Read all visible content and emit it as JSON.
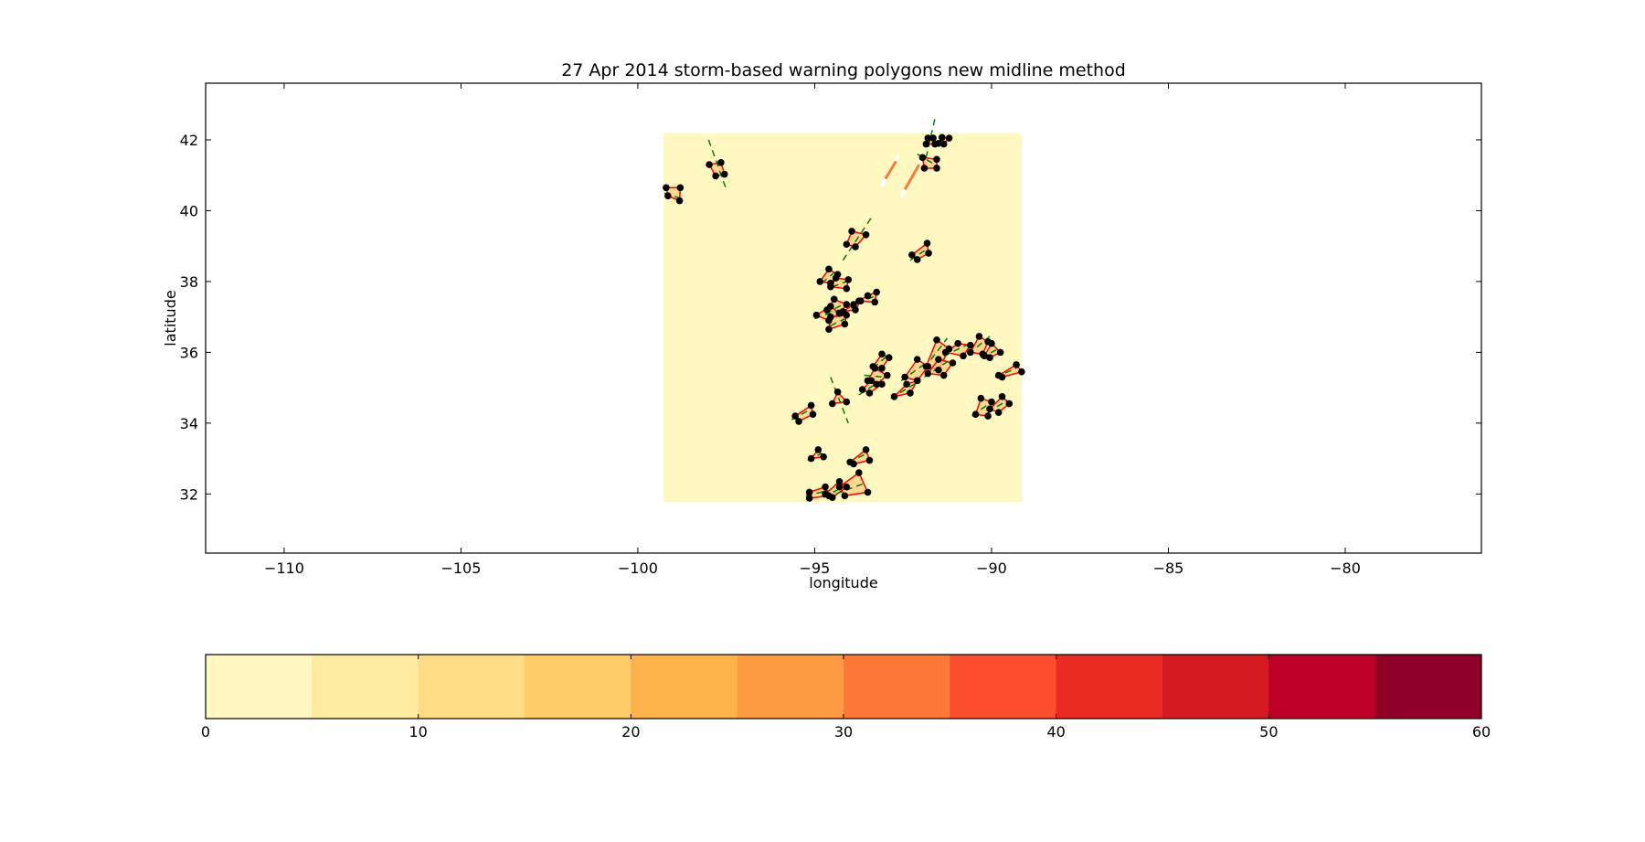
{
  "chart_data": {
    "type": "scatter",
    "title": "27 Apr 2014 storm-based warning polygons new midline method",
    "xlabel": "longitude",
    "ylabel": "latitude",
    "xlim": [
      -112.22,
      -76.15
    ],
    "ylim": [
      30.33,
      43.6
    ],
    "xticks": [
      -110,
      -105,
      -100,
      -95,
      -90,
      -85,
      -80
    ],
    "xtick_labels": [
      "−110",
      "−105",
      "−100",
      "−95",
      "−90",
      "−85",
      "−80"
    ],
    "yticks": [
      32,
      34,
      36,
      38,
      40,
      42
    ],
    "ytick_labels": [
      "32",
      "34",
      "36",
      "38",
      "40",
      "42"
    ],
    "grid": false,
    "background_field": {
      "lon": [
        -99.27,
        -89.14
      ],
      "lat": [
        31.77,
        42.18
      ],
      "value": 0
    },
    "colorbar": {
      "orientation": "horizontal",
      "placement": "bottom",
      "range": [
        0,
        60
      ],
      "ticks": [
        0,
        10,
        20,
        30,
        40,
        50,
        60
      ],
      "tick_labels": [
        "0",
        "10",
        "20",
        "30",
        "40",
        "50",
        "60"
      ],
      "colors": [
        "#fff8c0",
        "#feeba0",
        "#fedd84",
        "#fecc68",
        "#feb24c",
        "#fd9b42",
        "#fd7a36",
        "#fc4d2c",
        "#e92b23",
        "#d51b21",
        "#bc0026",
        "#900026"
      ]
    },
    "polygon_color": "#ff0000",
    "polygon_fill": "#fdcc82",
    "midline_color": "#008000",
    "vertex_color": "#000000",
    "storms": [
      {
        "v": [
          [
            -99.2,
            40.65
          ],
          [
            -98.8,
            40.65
          ],
          [
            -98.82,
            40.28
          ],
          [
            -99.15,
            40.42
          ]
        ],
        "mid": [
          [
            -99.25,
            40.5
          ],
          [
            -98.8,
            40.35
          ]
        ]
      },
      {
        "v": [
          [
            -97.98,
            41.3
          ],
          [
            -97.65,
            41.36
          ],
          [
            -97.55,
            41.03
          ],
          [
            -97.8,
            40.98
          ]
        ],
        "mid": [
          [
            -98.0,
            42.0
          ],
          [
            -97.5,
            40.6
          ]
        ]
      },
      {
        "v": [
          [
            -94.1,
            39.05
          ],
          [
            -93.95,
            39.42
          ],
          [
            -93.55,
            39.32
          ],
          [
            -93.85,
            38.98
          ]
        ],
        "mid": [
          [
            -94.2,
            38.6
          ],
          [
            -93.4,
            39.8
          ]
        ]
      },
      {
        "v": [
          [
            -92.25,
            38.75
          ],
          [
            -91.82,
            39.08
          ],
          [
            -91.78,
            38.8
          ],
          [
            -92.1,
            38.62
          ]
        ],
        "mid": [
          [
            -92.3,
            38.6
          ],
          [
            -91.85,
            38.9
          ]
        ]
      },
      {
        "v": [
          [
            -91.95,
            41.5
          ],
          [
            -91.55,
            41.45
          ],
          [
            -91.55,
            41.2
          ],
          [
            -91.9,
            41.2
          ]
        ],
        "mid": [
          [
            -92.1,
            41.6
          ],
          [
            -91.6,
            41.3
          ]
        ]
      },
      {
        "v": [
          [
            -94.85,
            38.0
          ],
          [
            -94.6,
            38.35
          ],
          [
            -94.35,
            38.2
          ],
          [
            -94.55,
            37.95
          ]
        ],
        "mid": [
          [
            -94.8,
            37.95
          ],
          [
            -94.45,
            38.25
          ]
        ]
      },
      {
        "v": [
          [
            -94.55,
            37.85
          ],
          [
            -94.4,
            38.1
          ],
          [
            -94.05,
            38.05
          ],
          [
            -94.1,
            37.8
          ]
        ],
        "mid": [
          [
            -94.5,
            37.85
          ],
          [
            -94.1,
            38.0
          ]
        ]
      },
      {
        "v": [
          [
            -93.75,
            37.45
          ],
          [
            -93.5,
            37.6
          ],
          [
            -93.25,
            37.7
          ],
          [
            -93.3,
            37.42
          ]
        ],
        "mid": [
          [
            -93.8,
            37.4
          ],
          [
            -93.25,
            37.6
          ]
        ]
      },
      {
        "v": [
          [
            -94.65,
            37.2
          ],
          [
            -94.45,
            37.5
          ],
          [
            -94.1,
            37.35
          ],
          [
            -94.3,
            37.1
          ]
        ],
        "mid": [
          [
            -94.7,
            37.1
          ],
          [
            -94.1,
            37.4
          ]
        ]
      },
      {
        "v": [
          [
            -94.95,
            37.05
          ],
          [
            -94.55,
            37.3
          ],
          [
            -94.3,
            37.1
          ],
          [
            -94.6,
            36.9
          ]
        ],
        "mid": [
          [
            -95.0,
            36.95
          ],
          [
            -94.3,
            37.2
          ]
        ]
      },
      {
        "v": [
          [
            -94.6,
            36.65
          ],
          [
            -94.55,
            37.0
          ],
          [
            -94.1,
            37.05
          ],
          [
            -94.15,
            36.8
          ]
        ],
        "mid": [
          [
            -94.55,
            36.75
          ],
          [
            -94.15,
            36.95
          ]
        ]
      },
      {
        "v": [
          [
            -94.2,
            37.15
          ],
          [
            -93.9,
            37.35
          ],
          [
            -93.7,
            37.45
          ],
          [
            -93.85,
            37.2
          ]
        ],
        "mid": [
          [
            -94.25,
            37.1
          ],
          [
            -93.7,
            37.4
          ]
        ]
      },
      {
        "v": [
          [
            -93.35,
            35.6
          ],
          [
            -93.1,
            35.95
          ],
          [
            -92.9,
            35.85
          ],
          [
            -93.1,
            35.55
          ]
        ],
        "mid": [
          [
            -93.35,
            35.55
          ],
          [
            -92.95,
            35.9
          ]
        ]
      },
      {
        "v": [
          [
            -93.5,
            35.2
          ],
          [
            -93.3,
            35.55
          ],
          [
            -92.95,
            35.35
          ],
          [
            -93.25,
            35.1
          ]
        ],
        "mid": [
          [
            -93.6,
            35.35
          ],
          [
            -93.0,
            35.3
          ]
        ]
      },
      {
        "v": [
          [
            -93.65,
            34.95
          ],
          [
            -93.4,
            35.2
          ],
          [
            -93.1,
            35.1
          ],
          [
            -93.45,
            34.85
          ]
        ],
        "mid": [
          [
            -93.75,
            34.8
          ],
          [
            -93.2,
            35.15
          ]
        ]
      },
      {
        "v": [
          [
            -92.75,
            34.75
          ],
          [
            -92.4,
            35.1
          ],
          [
            -92.1,
            35.2
          ],
          [
            -92.3,
            34.85
          ]
        ],
        "mid": [
          [
            -92.85,
            34.7
          ],
          [
            -92.1,
            35.15
          ]
        ]
      },
      {
        "v": [
          [
            -92.45,
            35.3
          ],
          [
            -92.1,
            35.8
          ],
          [
            -91.8,
            35.6
          ],
          [
            -92.1,
            35.2
          ]
        ],
        "mid": [
          [
            -92.55,
            35.2
          ],
          [
            -91.85,
            35.7
          ]
        ]
      },
      {
        "v": [
          [
            -91.85,
            35.6
          ],
          [
            -91.55,
            36.35
          ],
          [
            -91.2,
            36.1
          ],
          [
            -91.5,
            35.5
          ]
        ],
        "mid": [
          [
            -91.9,
            35.55
          ],
          [
            -91.25,
            36.4
          ]
        ]
      },
      {
        "v": [
          [
            -91.3,
            36.0
          ],
          [
            -90.95,
            36.25
          ],
          [
            -90.6,
            36.2
          ],
          [
            -90.8,
            35.9
          ]
        ],
        "mid": [
          [
            -91.35,
            35.9
          ],
          [
            -90.6,
            36.25
          ]
        ]
      },
      {
        "v": [
          [
            -91.8,
            35.4
          ],
          [
            -91.5,
            35.8
          ],
          [
            -91.1,
            35.7
          ],
          [
            -91.35,
            35.35
          ]
        ],
        "mid": [
          [
            -91.9,
            35.3
          ],
          [
            -91.15,
            35.8
          ]
        ]
      },
      {
        "v": [
          [
            -90.6,
            36.0
          ],
          [
            -90.35,
            36.45
          ],
          [
            -90.1,
            36.3
          ],
          [
            -90.25,
            35.95
          ]
        ],
        "mid": [
          [
            -90.65,
            35.95
          ],
          [
            -90.05,
            36.45
          ]
        ]
      },
      {
        "v": [
          [
            -90.2,
            35.9
          ],
          [
            -90.0,
            36.25
          ],
          [
            -89.75,
            36.0
          ],
          [
            -90.05,
            35.85
          ]
        ],
        "mid": [
          [
            -90.3,
            35.85
          ],
          [
            -89.8,
            36.1
          ]
        ]
      },
      {
        "v": [
          [
            -89.8,
            35.35
          ],
          [
            -89.3,
            35.65
          ],
          [
            -89.15,
            35.45
          ],
          [
            -89.7,
            35.3
          ]
        ],
        "mid": [
          [
            -89.9,
            35.3
          ],
          [
            -89.3,
            35.55
          ]
        ]
      },
      {
        "v": [
          [
            -90.45,
            34.25
          ],
          [
            -90.3,
            34.7
          ],
          [
            -90.0,
            34.6
          ],
          [
            -90.1,
            34.2
          ]
        ],
        "mid": [
          [
            -90.55,
            34.2
          ],
          [
            -90.0,
            34.6
          ]
        ]
      },
      {
        "v": [
          [
            -90.05,
            34.4
          ],
          [
            -89.7,
            34.75
          ],
          [
            -89.5,
            34.55
          ],
          [
            -89.8,
            34.3
          ]
        ],
        "mid": [
          [
            -90.1,
            34.3
          ],
          [
            -89.55,
            34.65
          ]
        ]
      },
      {
        "v": [
          [
            -95.55,
            34.2
          ],
          [
            -95.1,
            34.5
          ],
          [
            -95.05,
            34.25
          ],
          [
            -95.45,
            34.05
          ]
        ],
        "mid": [
          [
            -95.65,
            34.1
          ],
          [
            -95.1,
            34.4
          ]
        ]
      },
      {
        "v": [
          [
            -94.5,
            34.55
          ],
          [
            -94.35,
            34.88
          ],
          [
            -94.1,
            34.6
          ]
        ],
        "mid": [
          [
            -94.55,
            35.3
          ],
          [
            -94.05,
            34.0
          ]
        ]
      },
      {
        "v": [
          [
            -95.1,
            33.0
          ],
          [
            -94.9,
            33.25
          ],
          [
            -94.75,
            33.05
          ]
        ],
        "mid": [
          [
            -95.2,
            32.95
          ],
          [
            -94.8,
            33.15
          ]
        ]
      },
      {
        "v": [
          [
            -94.0,
            32.9
          ],
          [
            -93.55,
            33.25
          ],
          [
            -93.45,
            32.95
          ],
          [
            -93.9,
            32.85
          ]
        ],
        "mid": [
          [
            -94.05,
            32.9
          ],
          [
            -93.5,
            33.15
          ]
        ]
      },
      {
        "v": [
          [
            -95.15,
            32.05
          ],
          [
            -94.7,
            32.2
          ],
          [
            -94.6,
            31.95
          ],
          [
            -95.15,
            31.88
          ]
        ],
        "mid": [
          [
            -95.25,
            31.95
          ],
          [
            -94.6,
            32.1
          ]
        ]
      },
      {
        "v": [
          [
            -94.3,
            32.2
          ],
          [
            -93.75,
            32.6
          ],
          [
            -93.5,
            32.05
          ],
          [
            -94.15,
            31.95
          ]
        ],
        "mid": [
          [
            -94.4,
            32.0
          ],
          [
            -93.6,
            32.3
          ]
        ]
      },
      {
        "v": [
          [
            -94.7,
            32.0
          ],
          [
            -94.3,
            32.35
          ],
          [
            -94.1,
            32.2
          ],
          [
            -94.5,
            31.9
          ]
        ],
        "mid": [
          [
            -94.75,
            31.9
          ],
          [
            -94.2,
            32.2
          ]
        ]
      },
      {
        "v": [
          [
            -91.85,
            41.88
          ],
          [
            -91.8,
            42.05
          ],
          [
            -91.65,
            42.05
          ],
          [
            -91.6,
            41.88
          ]
        ],
        "mid": [
          [
            -91.85,
            41.5
          ],
          [
            -91.6,
            42.6
          ]
        ]
      },
      {
        "v": [
          [
            -91.5,
            41.9
          ],
          [
            -91.4,
            42.07
          ],
          [
            -91.2,
            42.05
          ],
          [
            -91.35,
            41.88
          ]
        ],
        "mid": [
          [
            -91.5,
            41.9
          ],
          [
            -91.3,
            42.1
          ]
        ]
      }
    ],
    "streaks": [
      [
        [
          -93.1,
          40.7
        ],
        [
          -92.6,
          41.6
        ]
      ],
      [
        [
          -92.55,
          40.4
        ],
        [
          -91.95,
          41.5
        ]
      ]
    ]
  }
}
